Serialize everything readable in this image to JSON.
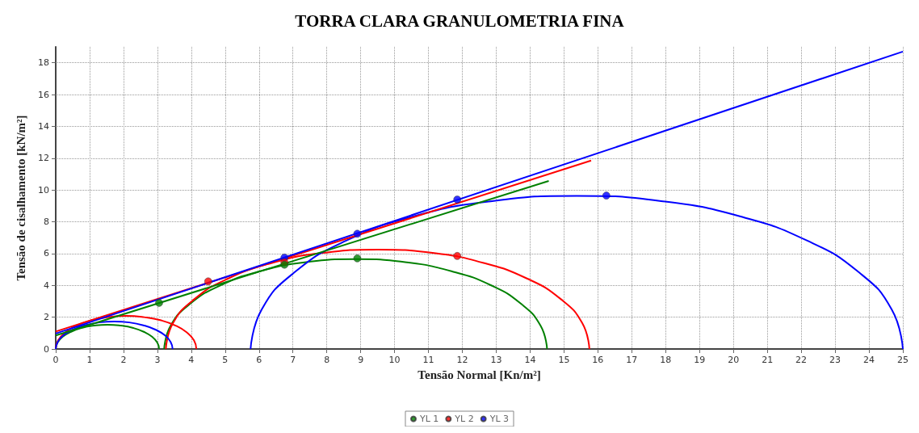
{
  "chart_data": {
    "type": "line",
    "title": "TORRA CLARA GRANULOMETRIA FINA",
    "xlabel": "Tensão Normal [Kn/m²]",
    "ylabel": "Tensão de cisalhamento [kN/m²]",
    "xlim": [
      0,
      25
    ],
    "xticks": [
      0,
      1,
      2,
      3,
      4,
      5,
      6,
      7,
      8,
      9,
      10,
      11,
      12,
      13,
      14,
      15,
      16,
      17,
      18,
      19,
      20,
      21,
      22,
      23,
      24,
      25
    ],
    "ylim": [
      0,
      19
    ],
    "yticks": [
      0,
      2,
      4,
      6,
      8,
      10,
      12,
      14,
      16,
      18
    ],
    "grid": true,
    "legend": "bottom",
    "line_style": "solid",
    "series": [
      {
        "color": "#008000",
        "x": [
          0,
          0.05,
          0.2,
          0.45,
          0.76,
          1.13,
          1.53,
          1.92,
          2.29,
          2.6,
          2.85,
          3.0,
          3.05
        ],
        "values": [
          0,
          0.39,
          0.76,
          1.08,
          1.32,
          1.47,
          1.53,
          1.47,
          1.32,
          1.08,
          0.76,
          0.39,
          0
        ]
      },
      {
        "color": "#008000",
        "x": [
          3.2,
          3.39,
          3.96,
          4.86,
          6.03,
          7.39,
          8.85,
          10.31,
          11.68,
          12.85,
          13.74,
          14.31,
          14.5
        ],
        "values": [
          0,
          1.46,
          2.83,
          4.0,
          4.89,
          5.46,
          5.65,
          5.46,
          4.89,
          4.0,
          2.83,
          1.46,
          0
        ]
      },
      {
        "color": "#ff0000",
        "x": [
          0,
          0.07,
          0.28,
          0.61,
          1.04,
          1.54,
          2.08,
          2.61,
          3.11,
          3.54,
          3.87,
          4.08,
          4.15
        ],
        "values": [
          0,
          0.54,
          1.04,
          1.47,
          1.8,
          2.0,
          2.08,
          2.0,
          1.8,
          1.47,
          1.04,
          0.54,
          0
        ]
      },
      {
        "color": "#ff0000",
        "x": [
          3.25,
          3.46,
          4.09,
          5.08,
          6.38,
          7.88,
          9.5,
          11.12,
          12.63,
          13.92,
          14.91,
          15.54,
          15.75
        ],
        "values": [
          0,
          1.62,
          3.13,
          4.42,
          5.41,
          6.04,
          6.25,
          6.04,
          5.41,
          4.42,
          3.13,
          1.62,
          0
        ]
      },
      {
        "color": "#0000ff",
        "x": [
          0,
          0.06,
          0.23,
          0.51,
          0.86,
          1.28,
          1.73,
          2.17,
          2.59,
          2.94,
          3.22,
          3.39,
          3.45
        ],
        "values": [
          0,
          0.45,
          0.86,
          1.22,
          1.49,
          1.67,
          1.73,
          1.67,
          1.49,
          1.22,
          0.86,
          0.45,
          0
        ]
      },
      {
        "color": "#0000ff",
        "x": [
          5.75,
          6.08,
          7.04,
          8.57,
          10.56,
          12.88,
          15.38,
          17.87,
          20.19,
          22.18,
          23.71,
          24.67,
          25
        ],
        "values": [
          0,
          2.49,
          4.81,
          6.81,
          8.34,
          9.3,
          9.63,
          9.3,
          8.34,
          6.81,
          4.81,
          2.49,
          0
        ]
      },
      {
        "color": "#008000",
        "x": [
          0,
          14.55
        ],
        "values": [
          0.85,
          10.57
        ]
      },
      {
        "color": "#ff0000",
        "x": [
          0,
          15.8
        ],
        "values": [
          1.1,
          11.85
        ]
      },
      {
        "color": "#0000ff",
        "x": [
          0,
          25
        ],
        "values": [
          0.97,
          18.7
        ]
      },
      {
        "type": "scatter",
        "name": "YL 1",
        "color": "#008000",
        "marker": "circle",
        "x": [
          3.05,
          6.75,
          8.9
        ],
        "values": [
          2.9,
          5.3,
          5.7
        ]
      },
      {
        "type": "scatter",
        "name": "YL 2",
        "color": "#ff0000",
        "marker": "circle",
        "x": [
          4.5,
          6.75,
          11.85
        ],
        "values": [
          4.25,
          5.45,
          5.85
        ]
      },
      {
        "type": "scatter",
        "name": "YL 3",
        "color": "#0000ff",
        "marker": "circle",
        "x": [
          6.75,
          8.9,
          11.85,
          16.25
        ],
        "values": [
          5.75,
          7.25,
          9.4,
          9.65
        ]
      }
    ]
  }
}
